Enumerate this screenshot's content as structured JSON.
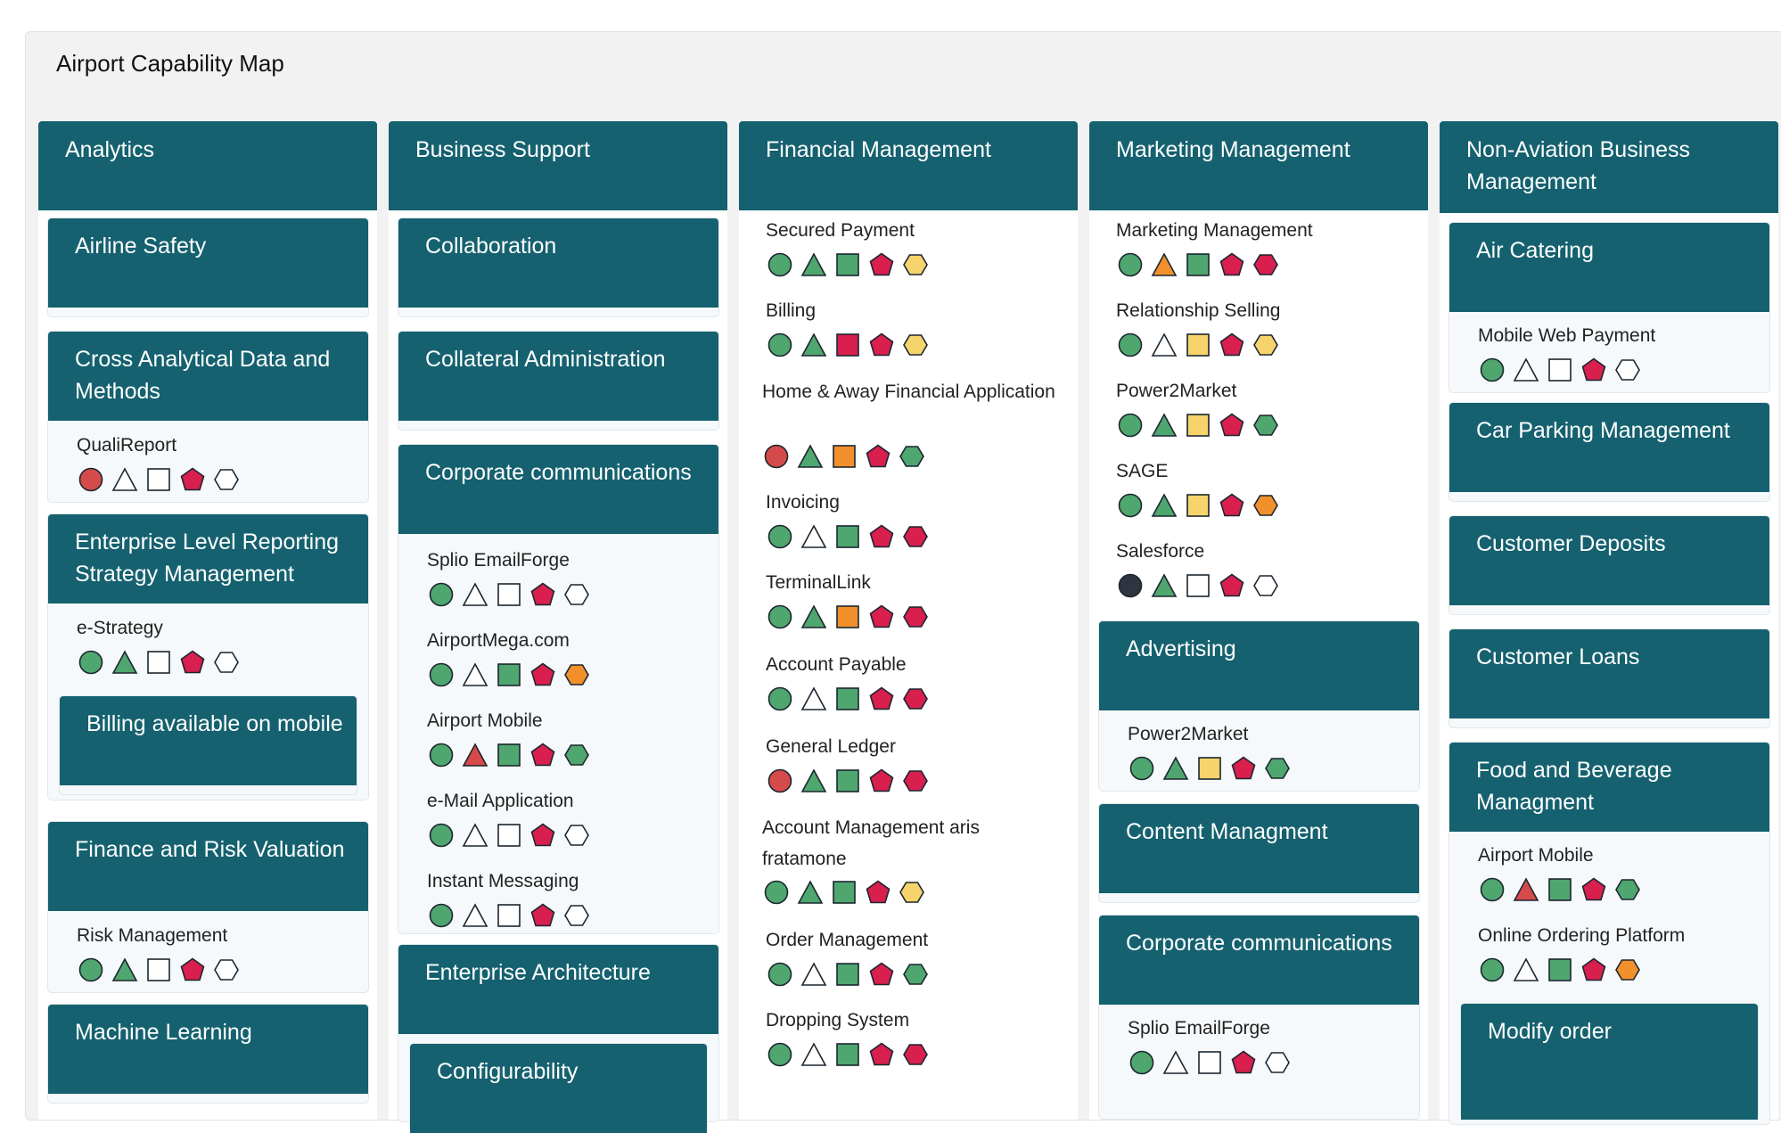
{
  "page": {
    "title": "Airport Capability Map"
  },
  "colors": {
    "header": "#15616f",
    "green": "#4fa66e",
    "red": "#d54a4a",
    "crimson": "#d81f4d",
    "orange": "#f2902c",
    "yellow": "#f7d46b",
    "teal": "#2aa07f",
    "dark": "#2f3540"
  },
  "legend_note": "",
  "columns": [
    {
      "title": "Analytics",
      "capabilities": [
        {
          "title": "Airline Safety",
          "apps": []
        },
        {
          "title": "Cross Analytical Data and Methods",
          "apps": [
            {
              "name": "QualiReport",
              "icons": [
                "circle-red",
                "triangle-white",
                "square-white",
                "pentagon-crimson",
                "hexagon-white"
              ]
            }
          ]
        },
        {
          "title": "Enterprise Level Reporting Strategy Management",
          "apps": [
            {
              "name": "e-Strategy",
              "icons": [
                "circle-green",
                "triangle-green",
                "square-white",
                "pentagon-crimson",
                "hexagon-white"
              ]
            }
          ],
          "sub": {
            "title": "Billing available on mobile"
          }
        },
        {
          "title": "Finance and Risk Valuation",
          "apps": [
            {
              "name": "Risk Management",
              "icons": [
                "circle-green",
                "triangle-green",
                "square-white",
                "pentagon-crimson",
                "hexagon-white"
              ]
            }
          ]
        },
        {
          "title": "Machine Learning",
          "apps": []
        }
      ]
    },
    {
      "title": "Business Support",
      "capabilities": [
        {
          "title": "Collaboration",
          "apps": []
        },
        {
          "title": "Collateral Administration",
          "apps": []
        },
        {
          "title": "Corporate communications",
          "apps": [
            {
              "name": "Splio EmailForge",
              "icons": [
                "circle-green",
                "triangle-white",
                "square-white",
                "pentagon-crimson",
                "hexagon-white"
              ]
            },
            {
              "name": "AirportMega.com",
              "icons": [
                "circle-green",
                "triangle-white",
                "square-green",
                "pentagon-crimson",
                "hexagon-orange"
              ]
            },
            {
              "name": "Airport Mobile",
              "icons": [
                "circle-green",
                "triangle-red",
                "square-green",
                "pentagon-crimson",
                "hexagon-green"
              ]
            },
            {
              "name": "e-Mail Application",
              "icons": [
                "circle-green",
                "triangle-white",
                "square-white",
                "pentagon-crimson",
                "hexagon-white"
              ]
            },
            {
              "name": "Instant Messaging",
              "icons": [
                "circle-green",
                "triangle-white",
                "square-white",
                "pentagon-crimson",
                "hexagon-white"
              ]
            }
          ]
        },
        {
          "title": "Enterprise Architecture",
          "apps": [],
          "sub": {
            "title": "Configurability"
          }
        }
      ]
    },
    {
      "title": "Financial Management",
      "apps": [
        {
          "name": "Secured Payment",
          "icons": [
            "circle-green",
            "triangle-green",
            "square-green",
            "pentagon-crimson",
            "hexagon-yellow"
          ]
        },
        {
          "name": "Billing",
          "icons": [
            "circle-green",
            "triangle-green",
            "square-crimson",
            "pentagon-crimson",
            "hexagon-yellow"
          ]
        },
        {
          "name": "Home & Away Financial Application",
          "icons": [
            "circle-red",
            "triangle-green",
            "square-orange",
            "pentagon-crimson",
            "hexagon-green"
          ]
        },
        {
          "name": "Invoicing",
          "icons": [
            "circle-green",
            "triangle-white",
            "square-green",
            "pentagon-crimson",
            "hexagon-crimson"
          ]
        },
        {
          "name": "TerminalLink",
          "icons": [
            "circle-green",
            "triangle-green",
            "square-orange",
            "pentagon-crimson",
            "hexagon-crimson"
          ]
        },
        {
          "name": "Account Payable",
          "icons": [
            "circle-green",
            "triangle-white",
            "square-green",
            "pentagon-crimson",
            "hexagon-crimson"
          ]
        },
        {
          "name": "General Ledger",
          "icons": [
            "circle-red",
            "triangle-green",
            "square-green",
            "pentagon-crimson",
            "hexagon-crimson"
          ]
        },
        {
          "name": "Account Management aris fratamone",
          "icons": [
            "circle-green",
            "triangle-green",
            "square-green",
            "pentagon-crimson",
            "hexagon-yellow"
          ]
        },
        {
          "name": "Order Management",
          "icons": [
            "circle-green",
            "triangle-white",
            "square-green",
            "pentagon-crimson",
            "hexagon-green"
          ]
        },
        {
          "name": "Dropping System",
          "icons": [
            "circle-green",
            "triangle-white",
            "square-green",
            "pentagon-crimson",
            "hexagon-crimson"
          ]
        }
      ]
    },
    {
      "title": "Marketing Management",
      "apps": [
        {
          "name": "Marketing Management",
          "icons": [
            "circle-green",
            "triangle-orange",
            "square-green",
            "pentagon-crimson",
            "hexagon-crimson"
          ]
        },
        {
          "name": "Relationship Selling",
          "icons": [
            "circle-green",
            "triangle-white",
            "square-yellow",
            "pentagon-crimson",
            "hexagon-yellow"
          ]
        },
        {
          "name": "Power2Market",
          "icons": [
            "circle-green",
            "triangle-green",
            "square-yellow",
            "pentagon-crimson",
            "hexagon-green"
          ]
        },
        {
          "name": "SAGE",
          "icons": [
            "circle-green",
            "triangle-green",
            "square-yellow",
            "pentagon-crimson",
            "hexagon-orange"
          ]
        },
        {
          "name": "Salesforce",
          "icons": [
            "circle-dark",
            "triangle-green",
            "square-white",
            "pentagon-crimson",
            "hexagon-white"
          ]
        }
      ],
      "capabilities": [
        {
          "title": "Advertising",
          "apps": [
            {
              "name": "Power2Market",
              "icons": [
                "circle-green",
                "triangle-green",
                "square-yellow",
                "pentagon-crimson",
                "hexagon-green"
              ]
            }
          ]
        },
        {
          "title": "Content Managment",
          "apps": []
        },
        {
          "title": "Corporate communications",
          "apps": [
            {
              "name": "Splio EmailForge",
              "icons": [
                "circle-green",
                "triangle-white",
                "square-white",
                "pentagon-crimson",
                "hexagon-white"
              ]
            }
          ]
        }
      ]
    },
    {
      "title": "Non-Aviation Business Management",
      "capabilities": [
        {
          "title": "Air Catering",
          "apps": [
            {
              "name": "Mobile Web Payment",
              "icons": [
                "circle-green",
                "triangle-white",
                "square-white",
                "pentagon-crimson",
                "hexagon-white"
              ]
            }
          ]
        },
        {
          "title": "Car Parking Management",
          "apps": []
        },
        {
          "title": "Customer Deposits",
          "apps": []
        },
        {
          "title": "Customer Loans",
          "apps": []
        },
        {
          "title": "Food and Beverage Managment",
          "apps": [
            {
              "name": "Airport Mobile",
              "icons": [
                "circle-green",
                "triangle-red",
                "square-green",
                "pentagon-crimson",
                "hexagon-green"
              ]
            },
            {
              "name": "Online Ordering Platform",
              "icons": [
                "circle-green",
                "triangle-white",
                "square-green",
                "pentagon-crimson",
                "hexagon-orange"
              ]
            }
          ],
          "sub": {
            "title": "Modify order"
          }
        }
      ]
    }
  ]
}
